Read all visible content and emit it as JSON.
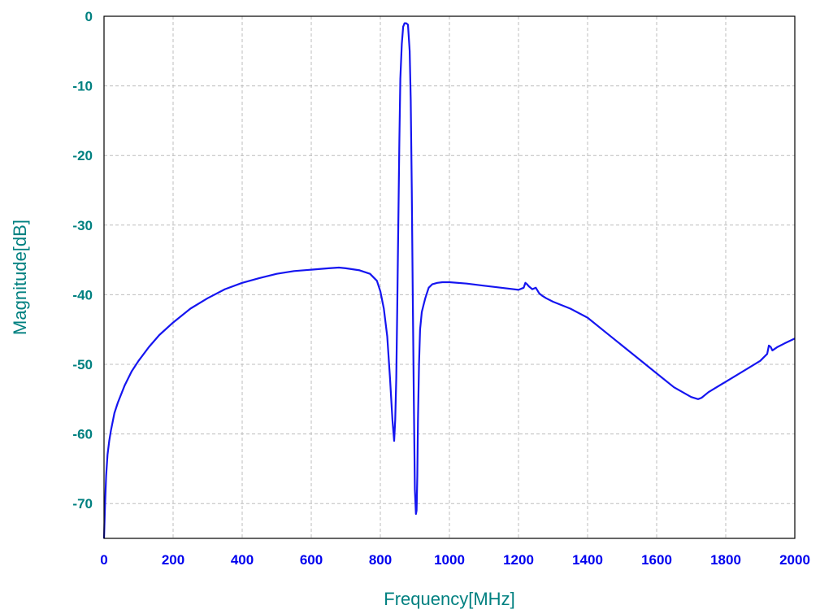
{
  "colors": {
    "axis_text": "#008080",
    "x_tick_text": "#0000ee",
    "y_tick_text": "#008080",
    "series_line": "#1515f0",
    "grid": "#bdbdbd",
    "frame": "#000000"
  },
  "chart_data": {
    "type": "line",
    "title": "",
    "xlabel": "Frequency[MHz]",
    "ylabel": "Magnitude[dB]",
    "xlim": [
      0,
      2000
    ],
    "ylim": [
      -75,
      0
    ],
    "x_ticks": [
      0,
      200,
      400,
      600,
      800,
      1000,
      1200,
      1400,
      1600,
      1800,
      2000
    ],
    "y_ticks": [
      0,
      -10,
      -20,
      -30,
      -40,
      -50,
      -60,
      -70
    ],
    "x_tick_labels": [
      "0",
      "200",
      "400",
      "600",
      "800",
      "1000",
      "1200",
      "1400",
      "1600",
      "1800",
      "2000"
    ],
    "y_tick_labels": [
      "0",
      "-10",
      "-20",
      "-30",
      "-40",
      "-50",
      "-60",
      "-70"
    ],
    "grid": true,
    "legend": "none",
    "series": [
      {
        "x": [
          0,
          3,
          6,
          10,
          15,
          20,
          30,
          40,
          60,
          80,
          100,
          130,
          160,
          200,
          250,
          300,
          350,
          400,
          450,
          500,
          550,
          600,
          650,
          680,
          700,
          740,
          770,
          790,
          800,
          810,
          820,
          828,
          835,
          840,
          843,
          846,
          849,
          852,
          855,
          858,
          862,
          866,
          870,
          875,
          880,
          885,
          888,
          891,
          894,
          897,
          900,
          903,
          905,
          907,
          909,
          912,
          915,
          920,
          925,
          930,
          940,
          950,
          965,
          980,
          1000,
          1050,
          1100,
          1150,
          1200,
          1215,
          1220,
          1225,
          1230,
          1240,
          1250,
          1260,
          1270,
          1280,
          1300,
          1350,
          1400,
          1450,
          1500,
          1550,
          1600,
          1650,
          1700,
          1720,
          1730,
          1750,
          1800,
          1850,
          1900,
          1920,
          1925,
          1930,
          1935,
          1950,
          1970,
          2000
        ],
        "y": [
          -75,
          -70,
          -66,
          -63,
          -61,
          -59.5,
          -57,
          -55.5,
          -53,
          -51,
          -49.5,
          -47.5,
          -45.8,
          -44,
          -42,
          -40.5,
          -39.2,
          -38.3,
          -37.6,
          -37.0,
          -36.6,
          -36.4,
          -36.2,
          -36.1,
          -36.2,
          -36.5,
          -37.0,
          -38.0,
          -39.5,
          -42,
          -46,
          -52,
          -58,
          -61,
          -58,
          -52,
          -42,
          -30,
          -18,
          -9,
          -4,
          -1.5,
          -1.0,
          -1.0,
          -1.2,
          -5,
          -12,
          -25,
          -40,
          -55,
          -68,
          -71.5,
          -71,
          -66,
          -58,
          -50,
          -45,
          -42.5,
          -41.5,
          -40.5,
          -39,
          -38.5,
          -38.3,
          -38.2,
          -38.2,
          -38.4,
          -38.7,
          -39.0,
          -39.3,
          -39.0,
          -38.3,
          -38.5,
          -38.8,
          -39.2,
          -39.0,
          -39.8,
          -40.2,
          -40.5,
          -41.0,
          -42.0,
          -43.3,
          -45.3,
          -47.3,
          -49.3,
          -51.3,
          -53.3,
          -54.7,
          -55.0,
          -54.8,
          -54.0,
          -52.5,
          -51.0,
          -49.5,
          -48.5,
          -47.3,
          -47.5,
          -48.0,
          -47.5,
          -47.0,
          -46.3
        ]
      }
    ]
  }
}
